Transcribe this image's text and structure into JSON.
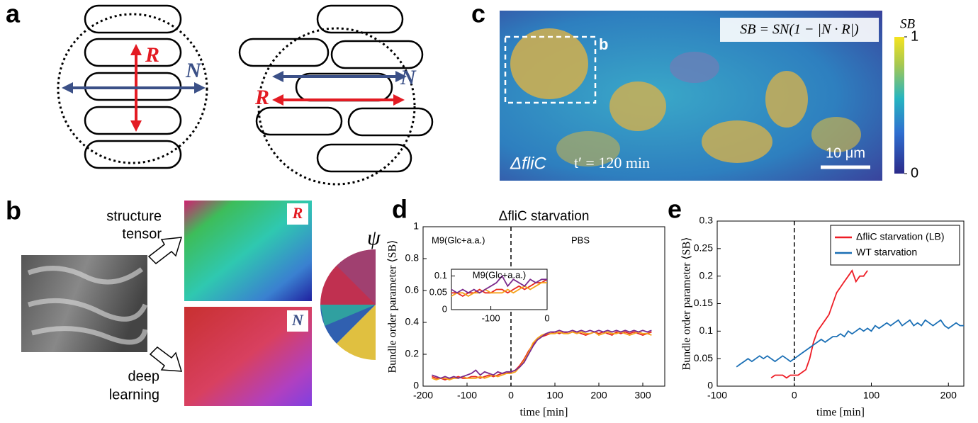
{
  "panel_labels": [
    "a",
    "b",
    "c",
    "d",
    "e"
  ],
  "panel_a": {
    "labels": [
      "R",
      "N",
      "R",
      "N"
    ]
  },
  "panel_b": {
    "structure_tensor": [
      "structure",
      "tensor"
    ],
    "deep_learning": [
      "deep",
      "learning"
    ],
    "tensor_labels": [
      "R",
      "N"
    ],
    "angle_symbol": "ψ"
  },
  "panel_c": {
    "formula": "SB = SN(1 − |N · R|)",
    "inset_label": "b",
    "strain": "ΔfliC",
    "time": "t′ = 120 min",
    "scale_bar": "10 μm",
    "colorbar_label": "SB",
    "colorbar_ticks": [
      1,
      0
    ]
  },
  "chart_data": [
    {
      "type": "line",
      "title": "ΔfliC starvation",
      "xlabel": "time [min]",
      "ylabel": "Bundle order parameter ⟨SB⟩",
      "annotations": [
        "M9(Glc+a.a.)",
        "PBS"
      ],
      "vline": 0,
      "x": [
        -180,
        -170,
        -160,
        -150,
        -140,
        -130,
        -120,
        -110,
        -100,
        -90,
        -80,
        -70,
        -60,
        -50,
        -40,
        -30,
        -20,
        -10,
        0,
        10,
        20,
        30,
        40,
        50,
        60,
        70,
        80,
        90,
        100,
        110,
        120,
        130,
        140,
        150,
        160,
        170,
        180,
        190,
        200,
        210,
        220,
        230,
        240,
        250,
        260,
        270,
        280,
        290,
        300,
        310,
        320
      ],
      "series": [
        {
          "color": "#e8281e",
          "values": [
            0.06,
            0.05,
            0.05,
            0.04,
            0.05,
            0.05,
            0.06,
            0.05,
            0.05,
            0.06,
            0.06,
            0.05,
            0.06,
            0.07,
            0.06,
            0.07,
            0.08,
            0.08,
            0.09,
            0.1,
            0.13,
            0.17,
            0.22,
            0.26,
            0.29,
            0.31,
            0.32,
            0.33,
            0.34,
            0.33,
            0.34,
            0.33,
            0.34,
            0.34,
            0.33,
            0.32,
            0.33,
            0.34,
            0.33,
            0.34,
            0.33,
            0.32,
            0.34,
            0.33,
            0.34,
            0.33,
            0.34,
            0.33,
            0.32,
            0.33,
            0.34
          ]
        },
        {
          "color": "#f5a21b",
          "values": [
            0.05,
            0.04,
            0.05,
            0.05,
            0.04,
            0.05,
            0.05,
            0.06,
            0.05,
            0.05,
            0.05,
            0.06,
            0.05,
            0.06,
            0.07,
            0.06,
            0.07,
            0.08,
            0.08,
            0.09,
            0.12,
            0.16,
            0.21,
            0.27,
            0.3,
            0.32,
            0.33,
            0.33,
            0.33,
            0.34,
            0.33,
            0.33,
            0.34,
            0.33,
            0.34,
            0.33,
            0.33,
            0.34,
            0.32,
            0.33,
            0.34,
            0.33,
            0.33,
            0.34,
            0.33,
            0.32,
            0.33,
            0.34,
            0.33,
            0.33,
            0.32
          ]
        },
        {
          "color": "#7b2a8c",
          "values": [
            0.07,
            0.06,
            0.05,
            0.06,
            0.05,
            0.06,
            0.05,
            0.06,
            0.07,
            0.08,
            0.1,
            0.07,
            0.09,
            0.08,
            0.07,
            0.09,
            0.08,
            0.09,
            0.09,
            0.1,
            0.12,
            0.15,
            0.2,
            0.25,
            0.29,
            0.31,
            0.33,
            0.34,
            0.34,
            0.35,
            0.34,
            0.34,
            0.35,
            0.34,
            0.35,
            0.34,
            0.35,
            0.34,
            0.35,
            0.34,
            0.35,
            0.34,
            0.35,
            0.34,
            0.35,
            0.34,
            0.35,
            0.34,
            0.35,
            0.34,
            0.35
          ]
        }
      ],
      "xlim": [
        -200,
        350
      ],
      "ylim": [
        0,
        1
      ],
      "xticks": [
        -200,
        -100,
        0,
        100,
        200,
        300
      ],
      "yticks": [
        0,
        0.2,
        0.4,
        0.6,
        0.8,
        1
      ],
      "inset": {
        "title": "M9(Glc+a.a.)",
        "xlim": [
          -170,
          0
        ],
        "ylim": [
          0,
          0.12
        ],
        "xticks": [
          -100,
          0
        ],
        "yticks": [
          0,
          0.05,
          0.1
        ]
      }
    },
    {
      "type": "line",
      "xlabel": "time [min]",
      "ylabel": "Bundle order parameter ⟨SB⟩",
      "vline": 0,
      "legend": "upper right",
      "x": [
        -75,
        -70,
        -65,
        -60,
        -55,
        -50,
        -45,
        -40,
        -35,
        -30,
        -25,
        -20,
        -15,
        -10,
        -5,
        0,
        5,
        10,
        15,
        20,
        25,
        30,
        35,
        40,
        45,
        50,
        55,
        60,
        65,
        70,
        75,
        80,
        85,
        90,
        95,
        100,
        105,
        110,
        115,
        120,
        125,
        130,
        135,
        140,
        145,
        150,
        155,
        160,
        165,
        170,
        175,
        180,
        185,
        190,
        195,
        200,
        205,
        210,
        215,
        220
      ],
      "series": [
        {
          "name": "ΔfliC starvation (LB)",
          "color": "#ee1c25",
          "values": [
            null,
            null,
            null,
            null,
            null,
            null,
            null,
            null,
            null,
            0.015,
            0.02,
            0.02,
            0.02,
            0.015,
            0.02,
            0.02,
            0.02,
            0.025,
            0.03,
            0.05,
            0.08,
            0.1,
            0.11,
            0.12,
            0.13,
            0.15,
            0.17,
            0.18,
            0.19,
            0.2,
            0.21,
            0.19,
            0.2,
            0.2,
            0.21,
            null,
            null,
            null,
            null,
            null,
            null,
            null,
            null,
            null,
            null,
            null,
            null,
            null,
            null,
            null,
            null,
            null,
            null,
            null,
            null,
            null,
            null,
            null,
            null,
            null
          ]
        },
        {
          "name": "WT starvation",
          "color": "#1a6fb5",
          "values": [
            0.035,
            0.04,
            0.045,
            0.05,
            0.045,
            0.05,
            0.055,
            0.05,
            0.055,
            0.05,
            0.045,
            0.05,
            0.055,
            0.05,
            0.045,
            0.05,
            0.055,
            0.06,
            0.065,
            0.07,
            0.075,
            0.08,
            0.085,
            0.08,
            0.085,
            0.09,
            0.09,
            0.095,
            0.09,
            0.1,
            0.095,
            0.1,
            0.105,
            0.1,
            0.105,
            0.1,
            0.11,
            0.105,
            0.11,
            0.115,
            0.11,
            0.115,
            0.12,
            0.11,
            0.115,
            0.12,
            0.11,
            0.115,
            0.11,
            0.12,
            0.115,
            0.11,
            0.115,
            0.12,
            0.11,
            0.105,
            0.11,
            0.115,
            0.11,
            0.11
          ]
        }
      ],
      "xlim": [
        -100,
        220
      ],
      "ylim": [
        0,
        0.3
      ],
      "xticks": [
        -100,
        0,
        100,
        200
      ],
      "yticks": [
        0,
        0.05,
        0.1,
        0.15,
        0.2,
        0.25,
        0.3
      ]
    }
  ]
}
